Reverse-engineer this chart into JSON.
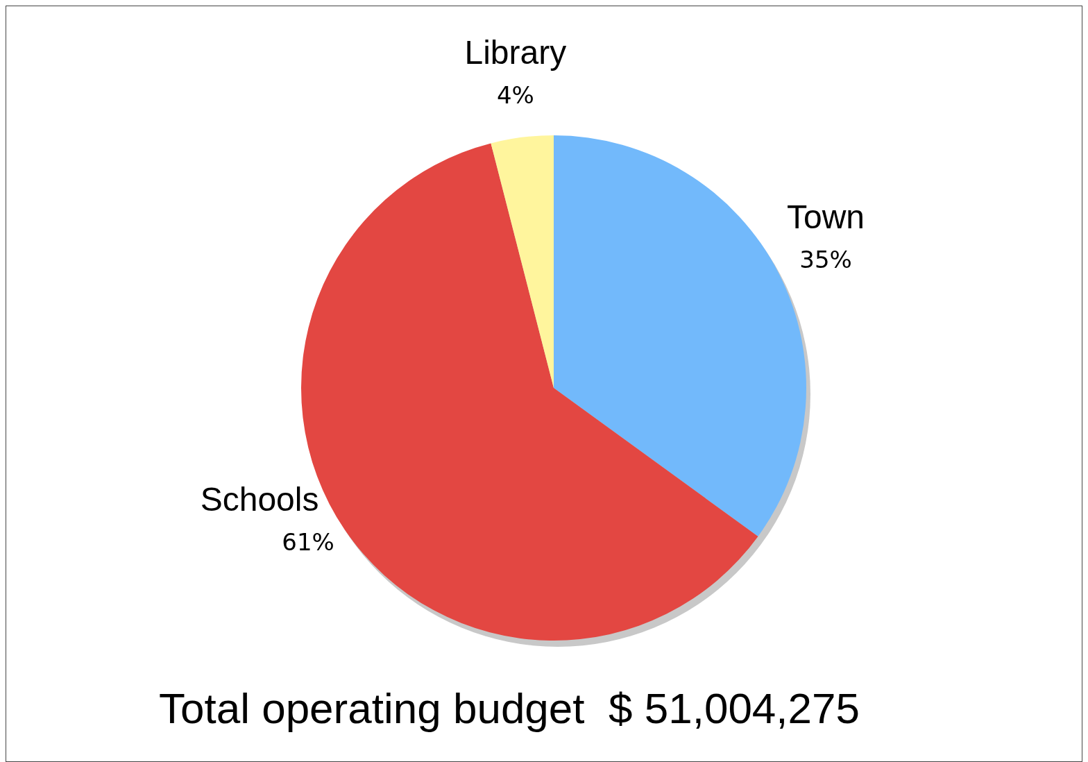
{
  "chart_data": {
    "type": "pie",
    "title": "Total operating budget  $ 51,004,275",
    "categories": [
      "Town",
      "Schools",
      "Library"
    ],
    "values": [
      35,
      61,
      4
    ],
    "colors": [
      "#72b9fb",
      "#e34742",
      "#fff59d"
    ],
    "value_labels": [
      "35%",
      "61%",
      "4%"
    ]
  }
}
